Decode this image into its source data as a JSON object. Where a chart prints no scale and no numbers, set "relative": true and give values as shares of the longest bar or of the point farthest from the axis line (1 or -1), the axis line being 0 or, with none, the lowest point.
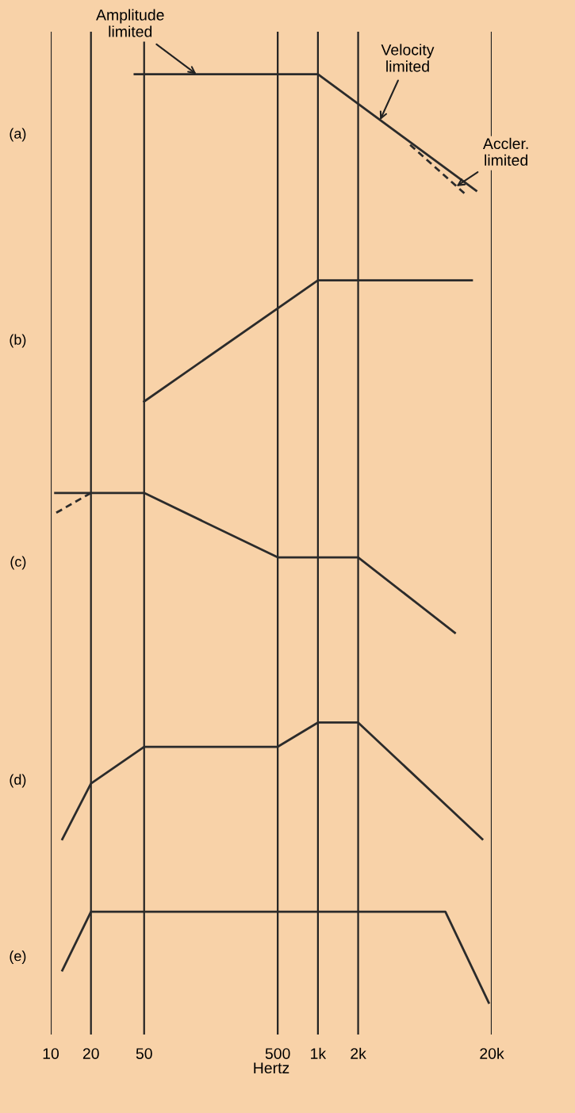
{
  "chart_data": [
    {
      "type": "line",
      "relative": true,
      "title": "(a)",
      "log": "x",
      "grid": "x",
      "legend": false,
      "marker": "none",
      "tick_labels": false,
      "xlim": [
        10,
        20000
      ],
      "xticks": [
        10,
        20,
        50,
        500,
        1000,
        2000,
        20000
      ],
      "series": [
        {
          "color": "#2b2b2b",
          "line_style": "solid",
          "x": [
            42.5,
            1000,
            15300
          ],
          "values": [
            1.0,
            1.0,
            0.038
          ]
        },
        {
          "color": "#2b2b2b",
          "line_style": "dashed",
          "x": [
            4900,
            13000
          ],
          "values": [
            0.417,
            0.0
          ]
        }
      ],
      "annotations": [
        {
          "text": "Amplitude\nlimited",
          "x": 123,
          "y": 1.0
        },
        {
          "text": "Velocity\nlimited",
          "x": 2920,
          "y": 0.622
        },
        {
          "text": "Accler.\nlimited",
          "x": 10900,
          "y": 0.075
        }
      ]
    },
    {
      "type": "line",
      "relative": true,
      "title": "(b)",
      "log": "x",
      "grid": "x",
      "legend": false,
      "marker": "none",
      "tick_labels": false,
      "xlim": [
        10,
        20000
      ],
      "xticks": [
        10,
        20,
        50,
        500,
        1000,
        2000,
        20000
      ],
      "series": [
        {
          "color": "#2b2b2b",
          "line_style": "solid",
          "x": [
            50,
            1000,
            14200
          ],
          "values": [
            0.0,
            1.0,
            1.0
          ]
        }
      ]
    },
    {
      "type": "line",
      "relative": true,
      "title": "(c)",
      "log": "x",
      "grid": "x",
      "legend": false,
      "marker": "none",
      "tick_labels": false,
      "xlim": [
        10,
        20000
      ],
      "xticks": [
        10,
        20,
        50,
        500,
        1000,
        2000,
        20000
      ],
      "series": [
        {
          "color": "#2b2b2b",
          "line_style": "solid",
          "x": [
            10.8,
            50,
            500,
            2000,
            10600
          ],
          "values": [
            1.0,
            1.0,
            0.539,
            0.539,
            0.0
          ]
        },
        {
          "color": "#2b2b2b",
          "line_style": "dashed",
          "x": [
            11,
            20
          ],
          "values": [
            0.858,
            1.0
          ]
        }
      ]
    },
    {
      "type": "line",
      "relative": true,
      "title": "(d)",
      "log": "x",
      "grid": "x",
      "legend": false,
      "marker": "none",
      "tick_labels": false,
      "xlim": [
        10,
        20000
      ],
      "xticks": [
        10,
        20,
        50,
        500,
        1000,
        2000,
        20000
      ],
      "series": [
        {
          "color": "#2b2b2b",
          "line_style": "solid",
          "x": [
            12.2,
            20,
            50,
            500,
            1000,
            2000,
            17000
          ],
          "values": [
            0.0,
            0.477,
            0.792,
            0.792,
            1.0,
            1.0,
            0.0
          ]
        }
      ]
    },
    {
      "type": "line",
      "relative": true,
      "title": "(e)",
      "xlabel": "Hertz",
      "log": "x",
      "grid": "x",
      "legend": false,
      "marker": "none",
      "tick_labels": "x",
      "xlim": [
        10,
        20000
      ],
      "xticks": [
        10,
        20,
        50,
        500,
        {
          "value": 1000,
          "label": "1k"
        },
        {
          "value": 2000,
          "label": "2k"
        },
        {
          "value": 20000,
          "label": "20k"
        }
      ],
      "series": [
        {
          "color": "#2b2b2b",
          "line_style": "solid",
          "x": [
            12.2,
            20,
            9000,
            19000
          ],
          "values": [
            0.356,
            1.0,
            1.0,
            0.0
          ]
        }
      ]
    }
  ]
}
